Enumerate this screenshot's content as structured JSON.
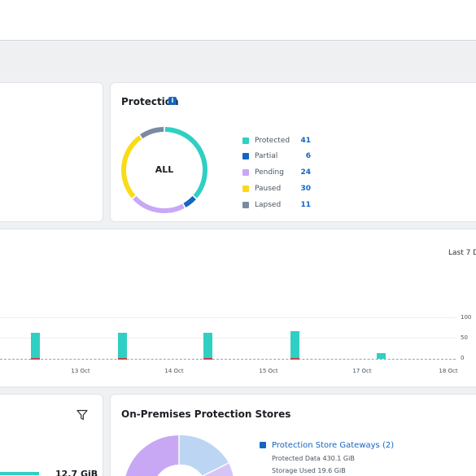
{
  "protection": {
    "title": "Protection",
    "info_icon": "i",
    "center_label": "ALL",
    "legend": [
      {
        "label": "Protected",
        "value": "41",
        "color": "#2fd0c3"
      },
      {
        "label": "Partial",
        "value": "6",
        "color": "#1565c0"
      },
      {
        "label": "Pending",
        "value": "24",
        "color": "#c8a8f5"
      },
      {
        "label": "Paused",
        "value": "30",
        "color": "#f8dc18"
      },
      {
        "label": "Lapsed",
        "value": "11",
        "color": "#7a8aa0"
      }
    ]
  },
  "activity": {
    "range_label": "Last 7 D",
    "x_ticks": [
      "13 Oct",
      "14 Oct",
      "15 Oct",
      "17 Oct",
      "18 Oct"
    ],
    "y_ticks": [
      "100",
      "50",
      "0"
    ]
  },
  "chart_data": {
    "type": "bar",
    "x_ticks": [
      "13 Oct",
      "14 Oct",
      "15 Oct",
      "17 Oct",
      "18 Oct"
    ],
    "y_ticks": [
      0,
      50,
      100
    ],
    "ylim": [
      0,
      100
    ],
    "series": [
      {
        "values": [
          62,
          62,
          62,
          66,
          14
        ],
        "color": "#2fd0c3"
      }
    ],
    "grid": true
  },
  "stores": {
    "title": "On-Premises Protection Stores",
    "gateways_label": "Protection Store Gateways (2)",
    "protected_data": "Protected Data 430.1 GiB",
    "storage_used": "Storage Used 19.6 GiB"
  },
  "left_bottom": {
    "value": "12.7 GiB",
    "filter_icon": "filter-icon"
  }
}
